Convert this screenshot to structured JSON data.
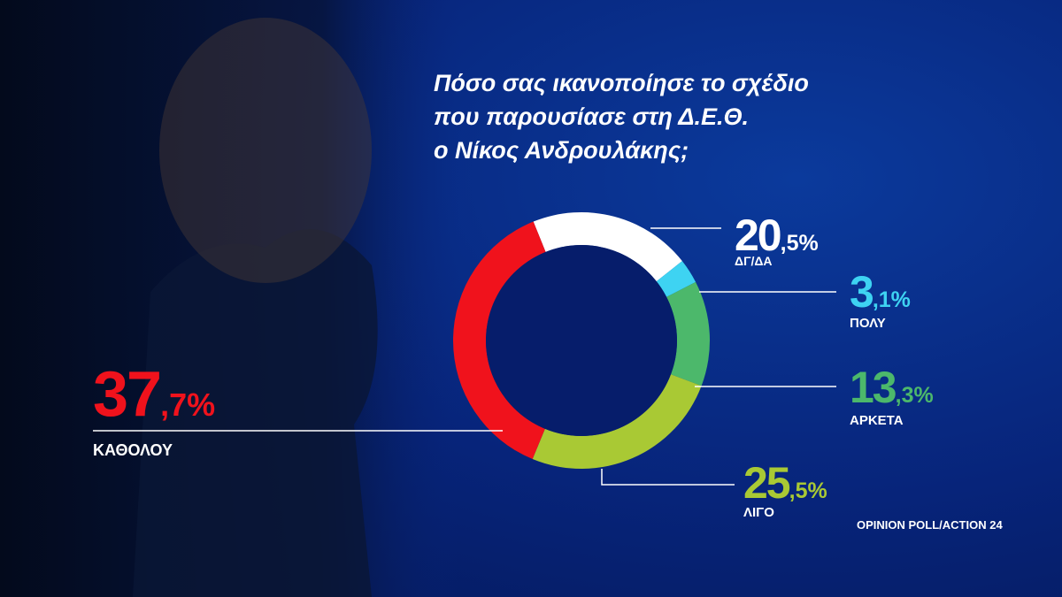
{
  "chart_data": {
    "type": "donut",
    "title": [
      "Πόσο σας ικανοποίησε το σχέδιο",
      "που παρουσίασε στη Δ.Ε.Θ.",
      "ο Νίκος Ανδρουλάκης;"
    ],
    "categories": [
      "ΔΓ/ΔΑ",
      "ΠΟΛΥ",
      "ΑΡΚΕΤΑ",
      "ΛΙΓΟ",
      "ΚΑΘΟΛΟΥ"
    ],
    "values": [
      20.5,
      3.1,
      13.3,
      25.5,
      37.7
    ],
    "value_labels": [
      "20,5%",
      "3,1%",
      "13,3%",
      "25,5%",
      "37,7%"
    ],
    "colors": [
      "#ffffff",
      "#3ed3f2",
      "#4cb86b",
      "#a9c934",
      "#f0121c"
    ],
    "source": "OPINION POLL/ACTION 24"
  }
}
